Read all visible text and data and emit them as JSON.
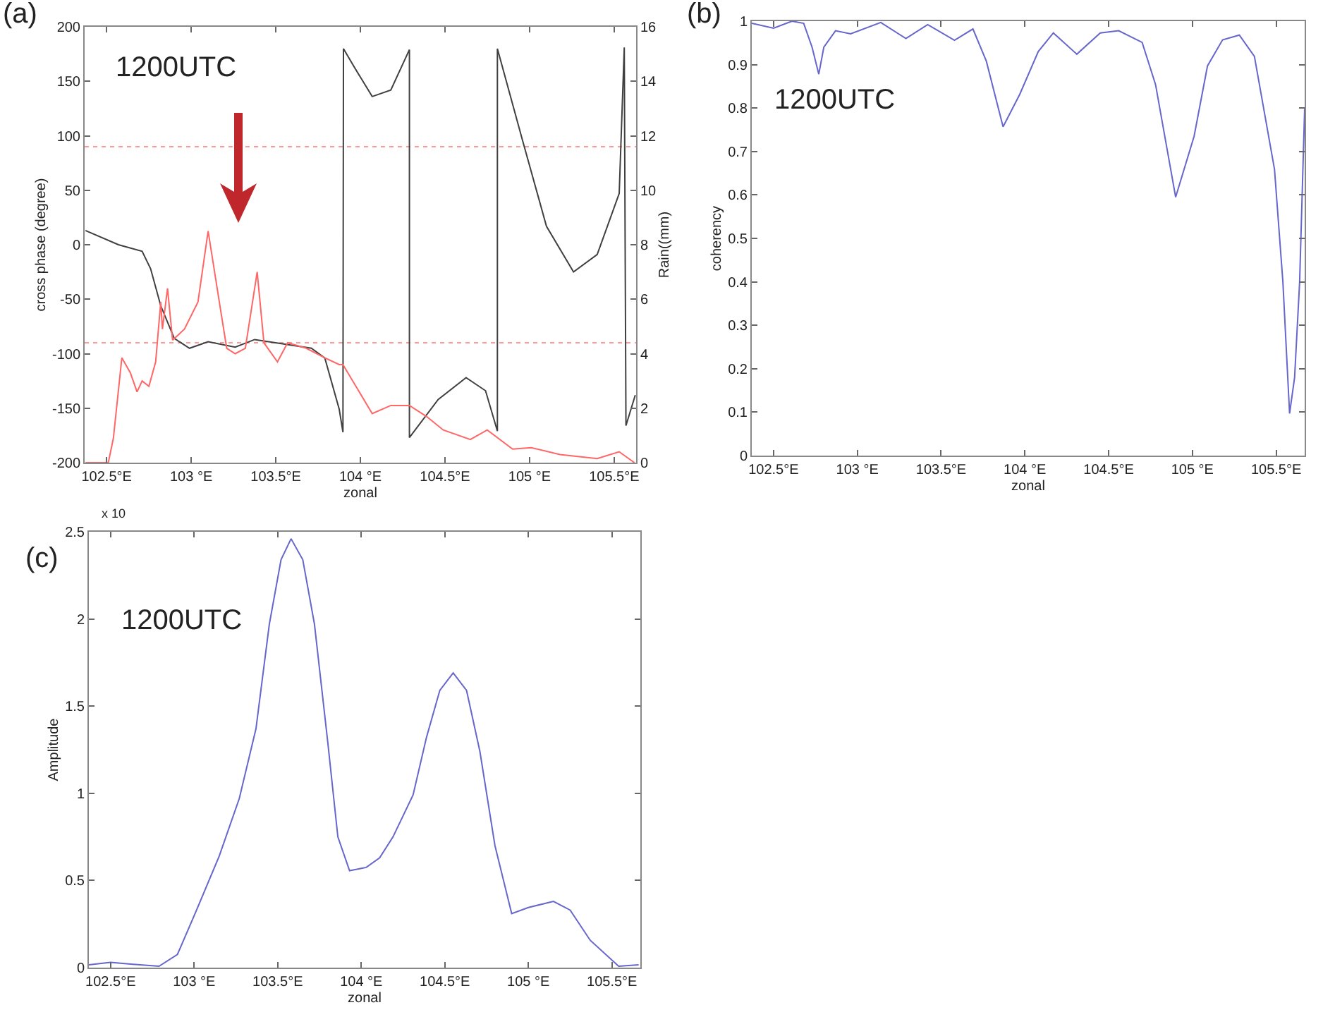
{
  "chart_data": [
    {
      "type": "line",
      "title": "(a)",
      "xlabel": "zonal",
      "ylabel": "cross phase (degree)",
      "y2label": "Rain((mm)",
      "annotations": [
        "1200UTC"
      ],
      "xlim": [
        102.37,
        105.63
      ],
      "xticks": [
        {
          "value": 102.5,
          "label": "102.5°E"
        },
        {
          "value": 103,
          "label": "103 °E"
        },
        {
          "value": 103.5,
          "label": "103.5°E"
        },
        {
          "value": 104,
          "label": "104 °E"
        },
        {
          "value": 104.5,
          "label": "104.5°E"
        },
        {
          "value": 105,
          "label": "105 °E"
        },
        {
          "value": 105.5,
          "label": "105.5°E"
        }
      ],
      "ylim": [
        -200,
        200
      ],
      "yticks": [
        -200,
        -150,
        -100,
        -50,
        0,
        50,
        100,
        150,
        200
      ],
      "y2lim": [
        0,
        16
      ],
      "y2ticks": [
        0,
        2,
        4,
        6,
        8,
        10,
        12,
        14,
        16
      ],
      "ref_lines": [
        {
          "axis": "y",
          "value": 90,
          "color": "#ff9999",
          "line_style": "dotted"
        },
        {
          "axis": "y",
          "value": -90,
          "color": "#ff9999",
          "line_style": "dotted"
        }
      ],
      "series": [
        {
          "color": "#404040",
          "x": [
            102.375,
            102.57,
            102.71,
            102.76,
            102.82,
            102.9,
            102.99,
            103.1,
            103.26,
            103.375,
            103.54,
            103.71,
            103.79,
            103.875,
            103.897,
            103.9,
            103.96,
            104.07,
            104.18,
            104.29,
            104.29,
            104.46,
            104.625,
            104.74,
            104.81,
            104.81,
            104.96,
            105.1,
            105.26,
            105.4,
            105.53,
            105.56,
            105.57,
            105.625
          ],
          "values": [
            13,
            0,
            -6,
            -22,
            -56,
            -86,
            -95,
            -89,
            -94,
            -87,
            -91,
            -95,
            -104,
            -151,
            -172,
            180,
            164,
            136,
            142,
            179,
            -177,
            -142,
            -122,
            -134,
            -171,
            180,
            95,
            17,
            -25,
            -9,
            47,
            181,
            -166,
            -138
          ]
        },
        {
          "color": "#ff6666",
          "axis": "y2",
          "x": [
            102.375,
            102.51,
            102.54,
            102.59,
            102.64,
            102.68,
            102.71,
            102.75,
            102.79,
            102.82,
            102.83,
            102.86,
            102.89,
            102.96,
            103.04,
            103.1,
            103.17,
            103.21,
            103.26,
            103.32,
            103.39,
            103.43,
            103.51,
            103.57,
            103.68,
            103.79,
            103.875,
            103.897,
            104.07,
            104.18,
            104.29,
            104.39,
            104.49,
            104.65,
            104.75,
            104.9,
            105.01,
            105.18,
            105.4,
            105.53,
            105.62
          ],
          "values": [
            0,
            0,
            0.9,
            3.85,
            3.3,
            2.6,
            3.0,
            2.8,
            3.7,
            5.9,
            4.9,
            6.4,
            4.5,
            4.9,
            5.9,
            8.5,
            5.75,
            4.2,
            4.0,
            4.2,
            7.0,
            4.4,
            3.7,
            4.4,
            4.2,
            3.85,
            3.6,
            3.6,
            1.8,
            2.1,
            2.1,
            1.7,
            1.2,
            0.85,
            1.2,
            0.5,
            0.55,
            0.3,
            0.15,
            0.4,
            0
          ]
        }
      ]
    },
    {
      "type": "line",
      "title": "(b)",
      "xlabel": "zonal",
      "ylabel": "coherency",
      "annotations": [
        "1200UTC"
      ],
      "xlim": [
        102.37,
        105.67
      ],
      "xticks": [
        {
          "value": 102.5,
          "label": "102.5°E"
        },
        {
          "value": 103,
          "label": "103 °E"
        },
        {
          "value": 103.5,
          "label": "103.5°E"
        },
        {
          "value": 104,
          "label": "104 °E"
        },
        {
          "value": 104.5,
          "label": "104.5°E"
        },
        {
          "value": 105,
          "label": "105 °E"
        },
        {
          "value": 105.5,
          "label": "105.5°E"
        }
      ],
      "ylim": [
        0,
        1
      ],
      "yticks": [
        0,
        0.1,
        0.2,
        0.3,
        0.4,
        0.5,
        0.6,
        0.7,
        0.8,
        0.9,
        1
      ],
      "series": [
        {
          "color": "#6666cc",
          "x": [
            102.37,
            102.5,
            102.61,
            102.68,
            102.73,
            102.77,
            102.8,
            102.87,
            102.96,
            103.14,
            103.29,
            103.42,
            103.58,
            103.69,
            103.77,
            103.87,
            103.97,
            104.08,
            104.17,
            104.31,
            104.45,
            104.56,
            104.7,
            104.78,
            104.9,
            105.01,
            105.09,
            105.18,
            105.28,
            105.37,
            105.49,
            105.54,
            105.58,
            105.61,
            105.64,
            105.67
          ],
          "values": [
            0.995,
            0.984,
            1.0,
            0.995,
            0.94,
            0.878,
            0.94,
            0.978,
            0.971,
            0.997,
            0.96,
            0.992,
            0.956,
            0.982,
            0.908,
            0.757,
            0.832,
            0.93,
            0.973,
            0.924,
            0.973,
            0.978,
            0.951,
            0.854,
            0.595,
            0.735,
            0.897,
            0.957,
            0.968,
            0.919,
            0.659,
            0.4,
            0.097,
            0.18,
            0.4,
            0.8
          ]
        }
      ]
    },
    {
      "type": "line",
      "title": "(c)",
      "xlabel": "zonal",
      "ylabel": "Amplitude",
      "annotations": [
        "1200UTC",
        "x 10"
      ],
      "xlim": [
        102.37,
        105.67
      ],
      "xticks": [
        {
          "value": 102.5,
          "label": "102.5°E"
        },
        {
          "value": 103,
          "label": "103 °E"
        },
        {
          "value": 103.5,
          "label": "103.5°E"
        },
        {
          "value": 104,
          "label": "104 °E"
        },
        {
          "value": 104.5,
          "label": "104.5°E"
        },
        {
          "value": 105,
          "label": "105 °E"
        },
        {
          "value": 105.5,
          "label": "105.5°E"
        }
      ],
      "ylim": [
        0,
        2.5
      ],
      "yticks": [
        0,
        0.5,
        1,
        1.5,
        2,
        2.5
      ],
      "series": [
        {
          "color": "#6666cc",
          "x": [
            102.37,
            102.5,
            102.62,
            102.79,
            102.9,
            103.01,
            103.15,
            103.27,
            103.37,
            103.45,
            103.52,
            103.58,
            103.65,
            103.72,
            103.8,
            103.86,
            103.93,
            104.03,
            104.11,
            104.19,
            104.31,
            104.39,
            104.47,
            104.55,
            104.63,
            104.71,
            104.8,
            104.9,
            105.0,
            105.15,
            105.25,
            105.37,
            105.54,
            105.66
          ],
          "values": [
            0.016,
            0.03,
            0.02,
            0.008,
            0.076,
            0.32,
            0.64,
            0.97,
            1.37,
            1.97,
            2.34,
            2.46,
            2.34,
            1.97,
            1.29,
            0.75,
            0.556,
            0.575,
            0.63,
            0.75,
            0.99,
            1.32,
            1.59,
            1.69,
            1.59,
            1.24,
            0.7,
            0.31,
            0.345,
            0.38,
            0.33,
            0.157,
            0.008,
            0.016
          ]
        }
      ]
    }
  ]
}
